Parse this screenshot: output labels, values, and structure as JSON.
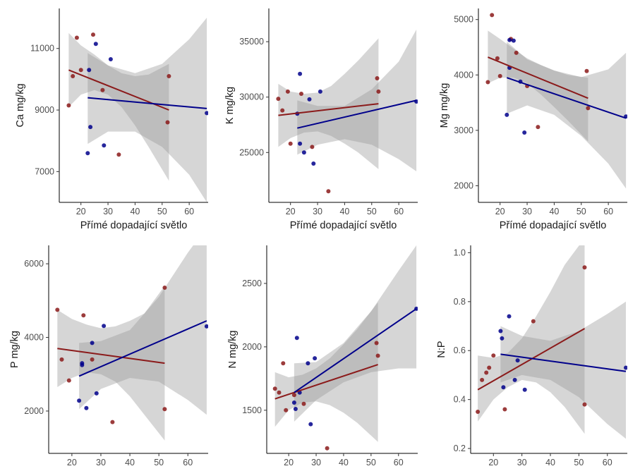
{
  "colors": {
    "red": "#8B1A1A",
    "blue": "#00008B",
    "ribbon": "#999999",
    "axis": "#000000"
  },
  "chart_data": [
    {
      "type": "scatter",
      "ylabel": "Ca mg/kg",
      "xlabel": "Přímé dopadající světlo",
      "xlim": [
        12,
        67
      ],
      "ylim": [
        6000,
        12300
      ],
      "xticks": [
        "20",
        "30",
        "40",
        "50",
        "60"
      ],
      "yticks": [
        "7000",
        "9000",
        "11000"
      ],
      "series": [
        {
          "color": "red",
          "points": [
            [
              15.5,
              9150
            ],
            [
              17,
              10100
            ],
            [
              18.5,
              11350
            ],
            [
              20,
              10300
            ],
            [
              24.5,
              11450
            ],
            [
              28,
              9650
            ],
            [
              34,
              7550
            ],
            [
              52,
              8600
            ],
            [
              52.5,
              10100
            ]
          ],
          "fit": {
            "x": [
              15.5,
              52.5
            ],
            "y": [
              10300,
              9000
            ]
          },
          "band": {
            "x": [
              15.5,
              20,
              25,
              30,
              35,
              40,
              45,
              52.5
            ],
            "lo": [
              9100,
              9500,
              9650,
              9500,
              9100,
              8500,
              7800,
              6700
            ],
            "hi": [
              11500,
              11100,
              10800,
              10450,
              10200,
              10100,
              10150,
              10500
            ]
          }
        },
        {
          "color": "blue",
          "points": [
            [
              22.5,
              7600
            ],
            [
              23,
              10300
            ],
            [
              23.5,
              8450
            ],
            [
              25.5,
              11150
            ],
            [
              28.5,
              7850
            ],
            [
              31,
              10650
            ],
            [
              66.5,
              8900
            ]
          ],
          "fit": {
            "x": [
              22.5,
              66.5
            ],
            "y": [
              9400,
              9050
            ]
          },
          "band": {
            "x": [
              22.5,
              30,
              40,
              50,
              60,
              66.5
            ],
            "lo": [
              7900,
              8300,
              8300,
              7800,
              6900,
              6000
            ],
            "hi": [
              10850,
              10450,
              10200,
              10500,
              11300,
              12000
            ]
          }
        }
      ]
    },
    {
      "type": "scatter",
      "ylabel": "K mg/kg",
      "xlabel": "Přímé dopadající světlo",
      "xlim": [
        12,
        67
      ],
      "ylim": [
        20500,
        38000
      ],
      "xticks": [
        "20",
        "30",
        "40",
        "50",
        "60"
      ],
      "yticks": [
        "25000",
        "30000",
        "35000"
      ],
      "series": [
        {
          "color": "red",
          "points": [
            [
              15.5,
              29850
            ],
            [
              17,
              28800
            ],
            [
              19,
              30500
            ],
            [
              20,
              25800
            ],
            [
              24,
              30300
            ],
            [
              28,
              25500
            ],
            [
              34,
              21500
            ],
            [
              52,
              31700
            ],
            [
              52.5,
              30500
            ]
          ],
          "fit": {
            "x": [
              15.5,
              52.5
            ],
            "y": [
              28350,
              29400
            ]
          },
          "band": {
            "x": [
              15.5,
              20,
              25,
              30,
              35,
              40,
              45,
              52.5
            ],
            "lo": [
              25500,
              26300,
              26800,
              26900,
              26500,
              25800,
              25000,
              23500
            ],
            "hi": [
              31200,
              30500,
              30300,
              30400,
              31000,
              32100,
              33300,
              35300
            ]
          }
        },
        {
          "color": "blue",
          "points": [
            [
              22.5,
              28500
            ],
            [
              23.5,
              32100
            ],
            [
              23.5,
              25800
            ],
            [
              25,
              25000
            ],
            [
              27,
              29800
            ],
            [
              28.5,
              24000
            ],
            [
              31,
              30500
            ],
            [
              66.5,
              29600
            ]
          ],
          "fit": {
            "x": [
              22.5,
              66.5
            ],
            "y": [
              27200,
              29700
            ]
          },
          "band": {
            "x": [
              22.5,
              30,
              40,
              50,
              60,
              66.5
            ],
            "lo": [
              24800,
              25700,
              26200,
              25700,
              24400,
              23300
            ],
            "hi": [
              29700,
              29200,
              29200,
              30700,
              33200,
              36100
            ]
          }
        }
      ]
    },
    {
      "type": "scatter",
      "ylabel": "Mg mg/kg",
      "xlabel": "Přímé dopadající světlo",
      "xlim": [
        12,
        67
      ],
      "ylim": [
        1700,
        5200
      ],
      "xticks": [
        "20",
        "30",
        "40",
        "50",
        "60"
      ],
      "yticks": [
        "2000",
        "3000",
        "4000",
        "5000"
      ],
      "series": [
        {
          "color": "red",
          "points": [
            [
              15.5,
              3870
            ],
            [
              17,
              5080
            ],
            [
              19,
              4300
            ],
            [
              20,
              3980
            ],
            [
              24,
              4650
            ],
            [
              26,
              4400
            ],
            [
              30,
              3800
            ],
            [
              34,
              3060
            ],
            [
              52,
              4070
            ],
            [
              52.5,
              3400
            ]
          ],
          "fit": {
            "x": [
              15.5,
              52.5
            ],
            "y": [
              4320,
              3580
            ]
          },
          "band": {
            "x": [
              15.5,
              20,
              25,
              30,
              35,
              40,
              45,
              52.5
            ],
            "lo": [
              3850,
              3950,
              3950,
              3850,
              3650,
              3420,
              3180,
              2800
            ],
            "hi": [
              4800,
              4650,
              4470,
              4300,
              4180,
              4080,
              4000,
              3950
            ]
          }
        },
        {
          "color": "blue",
          "points": [
            [
              22.5,
              3280
            ],
            [
              23.5,
              4130
            ],
            [
              23.5,
              4630
            ],
            [
              25,
              4620
            ],
            [
              27.5,
              3880
            ],
            [
              29,
              2960
            ],
            [
              66.5,
              3250
            ]
          ],
          "fit": {
            "x": [
              22.5,
              66.5
            ],
            "y": [
              3950,
              3220
            ]
          },
          "band": {
            "x": [
              22.5,
              30,
              40,
              50,
              60,
              66.5
            ],
            "lo": [
              3300,
              3450,
              3280,
              2900,
              2400,
              1950
            ],
            "hi": [
              4600,
              4280,
              4080,
              3960,
              4100,
              4400
            ]
          }
        }
      ]
    },
    {
      "type": "scatter",
      "ylabel": "P mg/kg",
      "xlabel": "Přímé dopadající světlo",
      "xlim": [
        12,
        67
      ],
      "ylim": [
        850,
        6500
      ],
      "xticks": [
        "20",
        "30",
        "40",
        "50",
        "60"
      ],
      "yticks": [
        "2000",
        "4000",
        "6000"
      ],
      "series": [
        {
          "color": "red",
          "points": [
            [
              15,
              4750
            ],
            [
              16.5,
              3400
            ],
            [
              19,
              2830
            ],
            [
              24,
              4600
            ],
            [
              27,
              3400
            ],
            [
              34,
              1700
            ],
            [
              52,
              5350
            ],
            [
              52,
              2050
            ]
          ],
          "fit": {
            "x": [
              15,
              52
            ],
            "y": [
              3700,
              3300
            ]
          },
          "band": {
            "x": [
              15,
              20,
              25,
              30,
              35,
              40,
              45,
              52
            ],
            "lo": [
              2650,
              2900,
              3050,
              3000,
              2800,
              2400,
              1900,
              1200
            ],
            "hi": [
              4750,
              4500,
              4350,
              4250,
              4300,
              4450,
              4650,
              5400
            ]
          }
        },
        {
          "color": "blue",
          "points": [
            [
              22.5,
              2280
            ],
            [
              23.5,
              3300
            ],
            [
              23.5,
              3250
            ],
            [
              25,
              2080
            ],
            [
              27,
              3850
            ],
            [
              28.5,
              2480
            ],
            [
              31,
              4310
            ],
            [
              66.5,
              4300
            ]
          ],
          "fit": {
            "x": [
              22.5,
              66.5
            ],
            "y": [
              2950,
              4450
            ]
          },
          "band": {
            "x": [
              22.5,
              30,
              40,
              50,
              60,
              66.5
            ],
            "lo": [
              2050,
              2600,
              2900,
              2800,
              2300,
              1900
            ],
            "hi": [
              3850,
              3900,
              4200,
              5100,
              6300,
              7000
            ]
          }
        }
      ]
    },
    {
      "type": "scatter",
      "ylabel": "N mg/kg",
      "xlabel": "Přímé dopadající světlo",
      "xlim": [
        12,
        67
      ],
      "ylim": [
        1160,
        2800
      ],
      "xticks": [
        "20",
        "30",
        "40",
        "50",
        "60"
      ],
      "yticks": [
        "1500",
        "2000",
        "2500"
      ],
      "series": [
        {
          "color": "red",
          "points": [
            [
              15,
              1670
            ],
            [
              16.5,
              1640
            ],
            [
              18,
              1870
            ],
            [
              19,
              1500
            ],
            [
              22,
              1620
            ],
            [
              25.5,
              1550
            ],
            [
              34,
              1200
            ],
            [
              52,
              2030
            ],
            [
              52.5,
              1930
            ]
          ],
          "fit": {
            "x": [
              15,
              52.5
            ],
            "y": [
              1590,
              1860
            ]
          },
          "band": {
            "x": [
              15,
              20,
              25,
              30,
              35,
              40,
              45,
              52.5
            ],
            "lo": [
              1370,
              1500,
              1560,
              1570,
              1540,
              1480,
              1400,
              1250
            ],
            "hi": [
              1800,
              1760,
              1780,
              1830,
              1910,
              2020,
              2140,
              2350
            ]
          }
        },
        {
          "color": "blue",
          "points": [
            [
              22,
              1560
            ],
            [
              22.5,
              1510
            ],
            [
              23,
              2070
            ],
            [
              24,
              1640
            ],
            [
              27,
              1870
            ],
            [
              28,
              1390
            ],
            [
              29.5,
              1910
            ],
            [
              66.5,
              2300
            ]
          ],
          "fit": {
            "x": [
              22,
              66.5
            ],
            "y": [
              1640,
              2300
            ]
          },
          "band": {
            "x": [
              22,
              30,
              40,
              50,
              60,
              66.5
            ],
            "lo": [
              1410,
              1580,
              1720,
              1800,
              1830,
              1830
            ],
            "hi": [
              1870,
              1880,
              2030,
              2280,
              2600,
              2800
            ]
          }
        }
      ]
    },
    {
      "type": "scatter",
      "ylabel": "N:P",
      "xlabel": "Přímé dopadající světlo",
      "xlim": [
        12,
        67
      ],
      "ylim": [
        0.18,
        1.03
      ],
      "xticks": [
        "20",
        "30",
        "40",
        "50",
        "60"
      ],
      "yticks": [
        "0.2",
        "0.4",
        "0.6",
        "0.8",
        "1.0"
      ],
      "series": [
        {
          "color": "red",
          "points": [
            [
              14.5,
              0.35
            ],
            [
              16,
              0.48
            ],
            [
              17.5,
              0.51
            ],
            [
              18.5,
              0.53
            ],
            [
              20,
              0.58
            ],
            [
              24,
              0.36
            ],
            [
              34,
              0.72
            ],
            [
              52,
              0.38
            ],
            [
              52,
              0.94
            ]
          ],
          "fit": {
            "x": [
              14.5,
              52
            ],
            "y": [
              0.44,
              0.69
            ]
          },
          "band": {
            "x": [
              14.5,
              20,
              25,
              30,
              35,
              40,
              45,
              52
            ],
            "lo": [
              0.31,
              0.4,
              0.45,
              0.48,
              0.47,
              0.43,
              0.37,
              0.26
            ],
            "hi": [
              0.58,
              0.57,
              0.59,
              0.65,
              0.74,
              0.84,
              0.95,
              1.06
            ]
          }
        },
        {
          "color": "blue",
          "points": [
            [
              22.5,
              0.68
            ],
            [
              23,
              0.65
            ],
            [
              23.5,
              0.45
            ],
            [
              25.5,
              0.74
            ],
            [
              27.5,
              0.48
            ],
            [
              28.5,
              0.56
            ],
            [
              31,
              0.44
            ],
            [
              66.5,
              0.53
            ]
          ],
          "fit": {
            "x": [
              22.5,
              66.5
            ],
            "y": [
              0.585,
              0.515
            ]
          },
          "band": {
            "x": [
              22.5,
              30,
              40,
              50,
              60,
              66.5
            ],
            "lo": [
              0.47,
              0.5,
              0.48,
              0.41,
              0.3,
              0.24
            ],
            "hi": [
              0.7,
              0.66,
              0.64,
              0.68,
              0.75,
              0.8
            ]
          }
        }
      ]
    }
  ]
}
